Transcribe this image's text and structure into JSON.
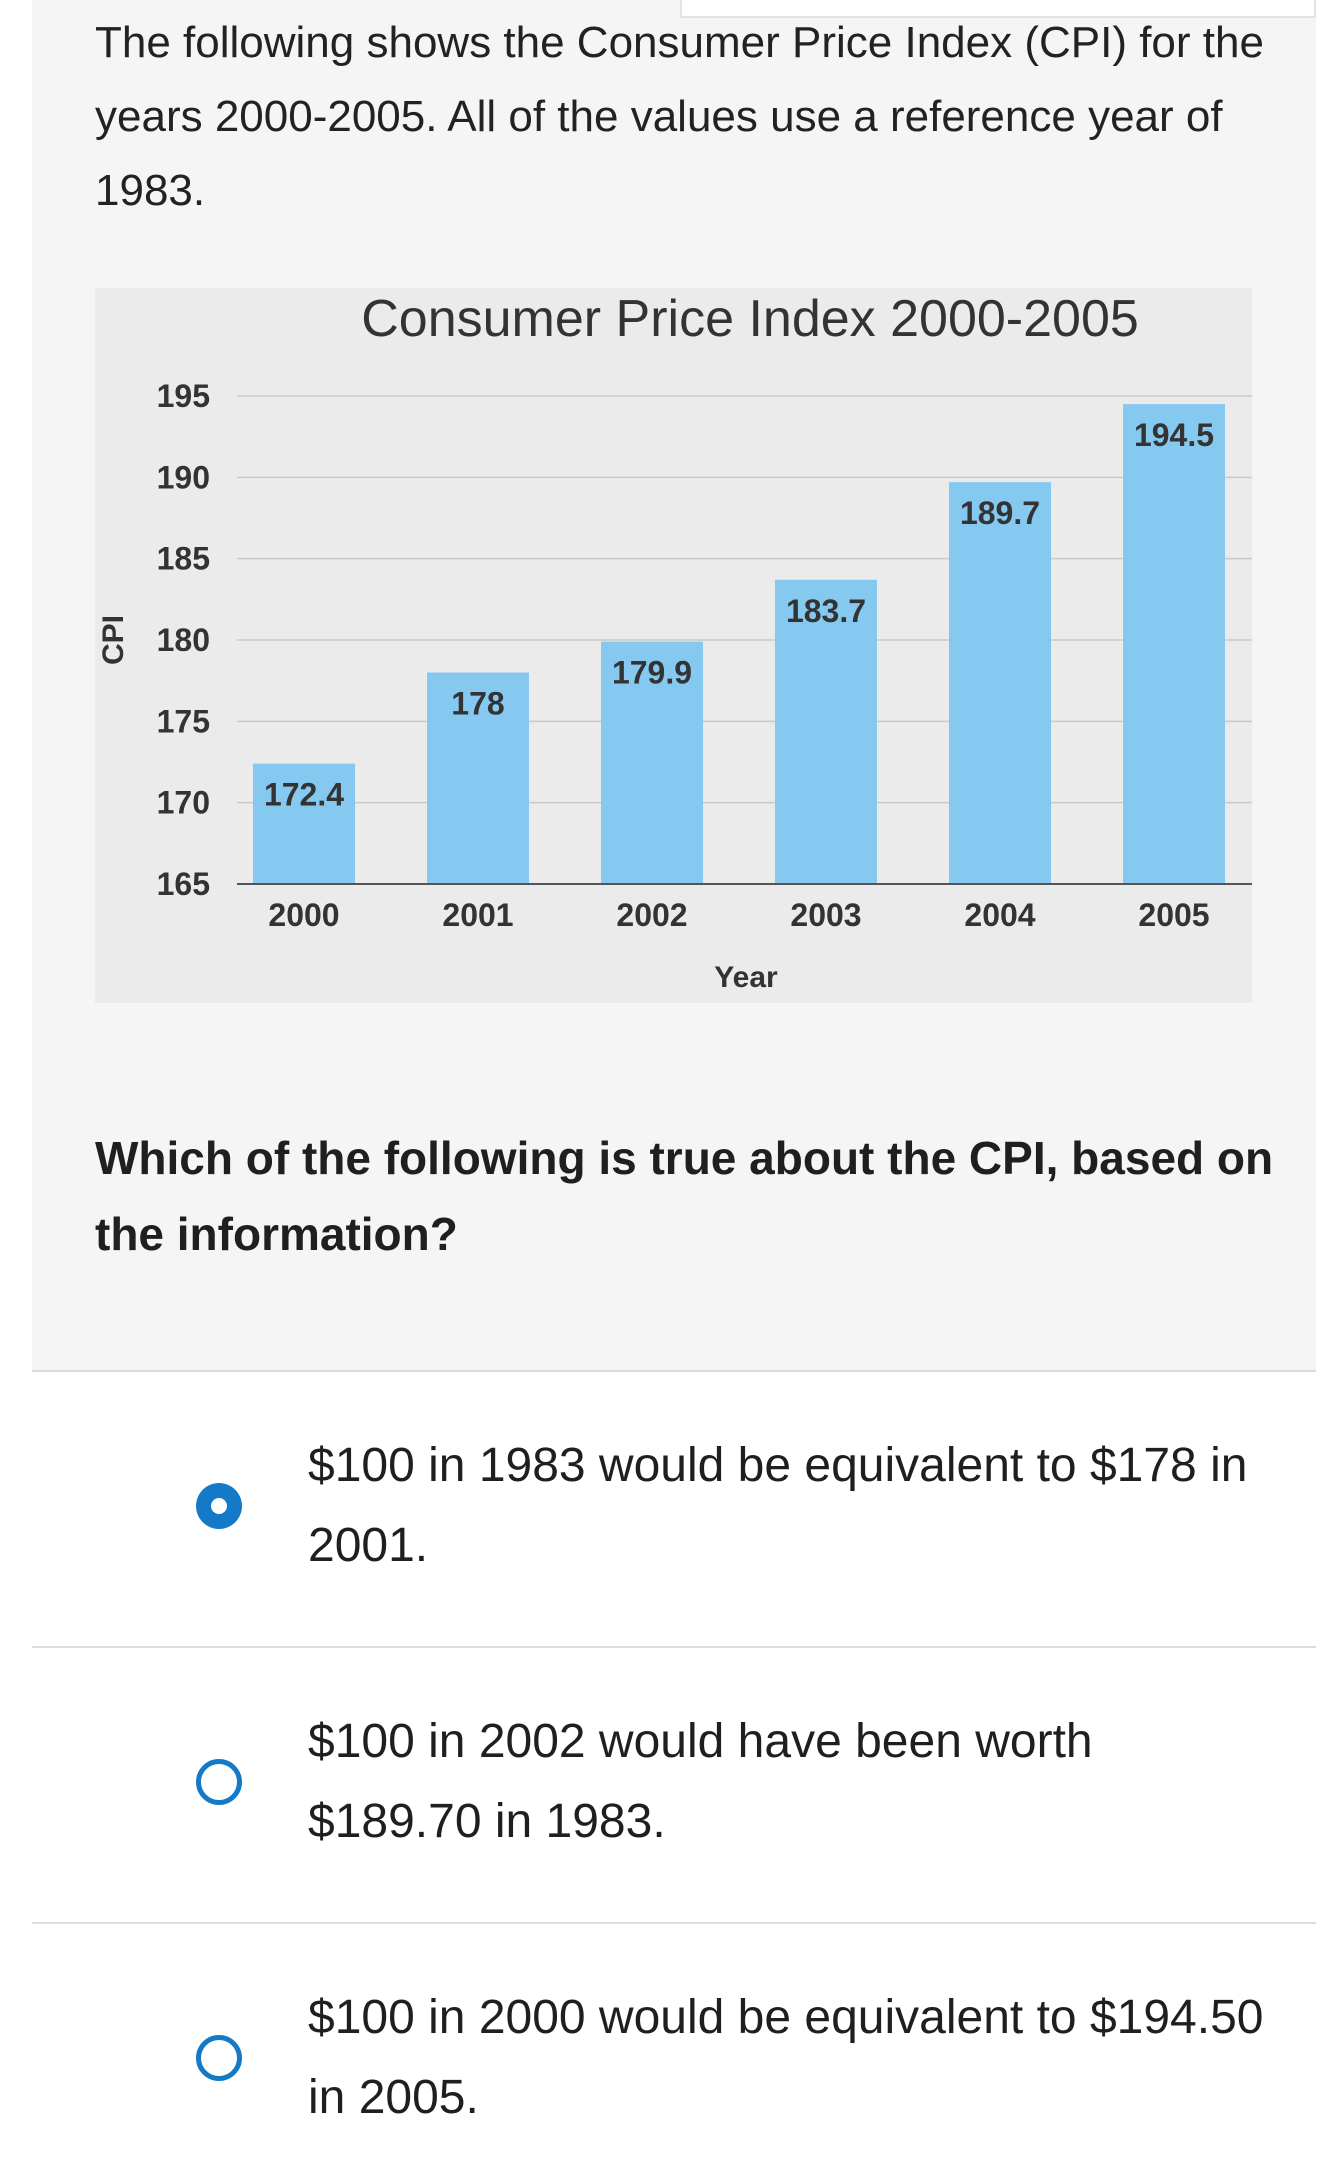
{
  "intro_text": "The following shows the Consumer Price Index (CPI) for the years 2000-2005. All of the values use a reference year of 1983.",
  "prompt_text": "Which of the following is true about the CPI, based on the information?",
  "chart_data": {
    "type": "bar",
    "title": "Consumer Price Index 2000-2005",
    "xlabel": "Year",
    "ylabel": "CPI",
    "categories": [
      "2000",
      "2001",
      "2002",
      "2003",
      "2004",
      "2005"
    ],
    "values": [
      172.4,
      178,
      179.9,
      183.7,
      189.7,
      194.5
    ],
    "data_labels": [
      "172.4",
      "178",
      "179.9",
      "183.7",
      "189.7",
      "194.5"
    ],
    "yticks": [
      "165",
      "170",
      "175",
      "180",
      "185",
      "190",
      "195"
    ],
    "ylim": [
      165,
      195
    ],
    "grid": true,
    "bar_color": "#85c8f0"
  },
  "options": [
    {
      "text": "$100 in 1983 would be equivalent to $178 in 2001.",
      "selected": true
    },
    {
      "text": "$100 in 2002 would have been worth $189.70 in 1983.",
      "selected": false
    },
    {
      "text": "$100 in 2000 would be equivalent to $194.50 in 2005.",
      "selected": false
    }
  ],
  "accent_color": "#1479c7"
}
